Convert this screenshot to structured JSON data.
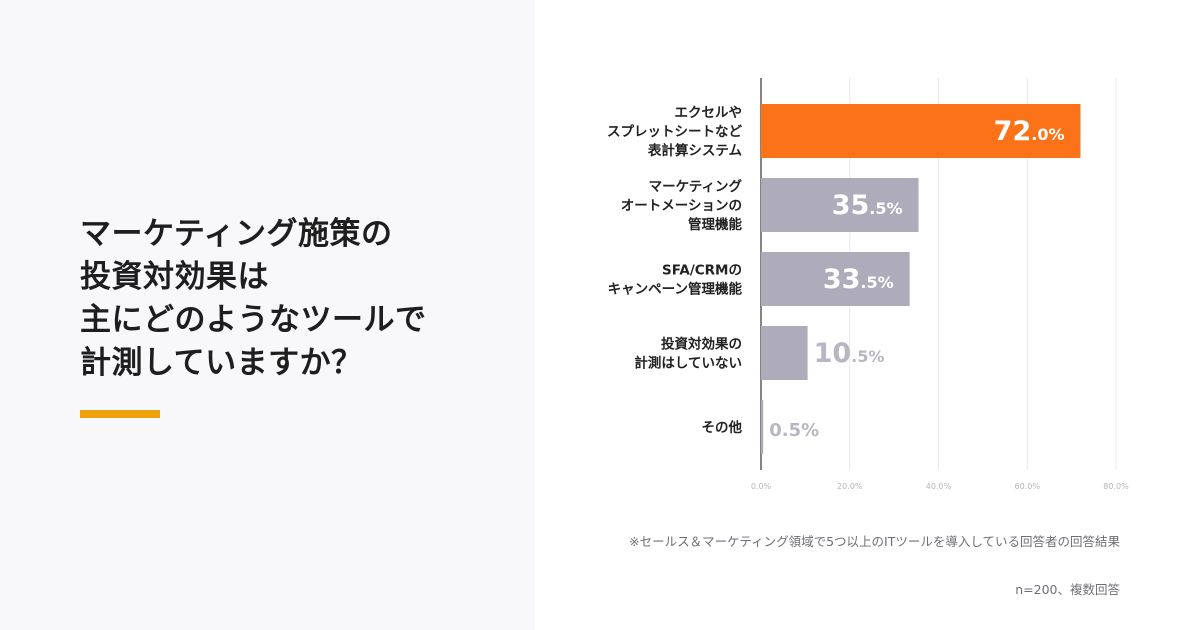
{
  "headline": {
    "lines": [
      "マーケティング施策の",
      "投資対効果は",
      "主にどのようなツールで",
      "計測していますか？"
    ]
  },
  "chart_data": {
    "type": "bar",
    "orientation": "horizontal",
    "categories": [
      [
        "エクセルや",
        "スプレットシートなど",
        "表計算システム"
      ],
      [
        "マーケティング",
        "オートメーションの",
        "管理機能"
      ],
      [
        "SFA/CRMの",
        "キャンペーン管理機能"
      ],
      [
        "投資対効果の",
        "計測はしていない"
      ],
      [
        "その他"
      ]
    ],
    "values": [
      72.0,
      35.5,
      33.5,
      10.5,
      0.5
    ],
    "value_labels": [
      {
        "int": "72",
        "dec": ".0%"
      },
      {
        "int": "35",
        "dec": ".5%"
      },
      {
        "int": "33",
        "dec": ".5%"
      },
      {
        "int": "10",
        "dec": ".5%"
      },
      {
        "int": "0",
        "dec": ".5%"
      }
    ],
    "xlim": [
      0,
      80
    ],
    "xticks": [
      0,
      20,
      40,
      60,
      80
    ],
    "xtick_labels": [
      "0.0%",
      "20.0%",
      "40.0%",
      "60.0%",
      "80.0%"
    ],
    "grid": true,
    "colors": {
      "highlight": "#fc7218",
      "default": "#aeacba",
      "grid": "#e8e8ee",
      "axis": "#333333"
    }
  },
  "footnote": "※セールス＆マーケティング領域で5つ以上のITツールを導入している回答者の回答結果",
  "sample": "n=200、複数回答"
}
